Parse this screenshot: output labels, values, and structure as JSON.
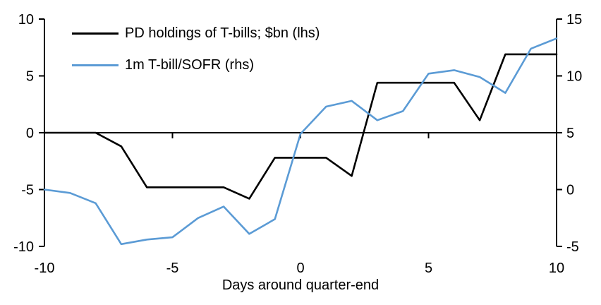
{
  "chart_data": {
    "type": "line",
    "title": "",
    "xlabel": "Days around quarter-end",
    "x": [
      -10,
      -9,
      -8,
      -7,
      -6,
      -5,
      -4,
      -3,
      -2,
      -1,
      0,
      1,
      2,
      3,
      4,
      5,
      6,
      7,
      8,
      9,
      10
    ],
    "series": [
      {
        "name": "PD holdings of T-bills; $bn (lhs)",
        "axis": "left",
        "color": "#000000",
        "values": [
          0,
          0,
          0,
          -1.2,
          -4.8,
          -4.8,
          -4.8,
          -4.8,
          -5.8,
          -2.2,
          -2.2,
          -2.2,
          -3.8,
          4.4,
          4.4,
          4.4,
          4.4,
          1.1,
          6.9,
          6.9,
          6.9
        ]
      },
      {
        "name": "1m T-bill/SOFR (rhs)",
        "axis": "right",
        "color": "#5B9BD5",
        "values": [
          0.0,
          -0.3,
          -1.2,
          -4.8,
          -4.4,
          -4.2,
          -2.5,
          -1.5,
          -3.9,
          -2.6,
          4.9,
          7.3,
          7.8,
          6.1,
          6.9,
          10.2,
          10.5,
          9.9,
          8.5,
          12.4,
          13.3
        ]
      }
    ],
    "left_axis": {
      "range": [
        -10,
        10
      ],
      "ticks": [
        10,
        5,
        0,
        -5,
        -10
      ]
    },
    "right_axis": {
      "range": [
        -5,
        15
      ],
      "ticks": [
        15,
        10,
        5,
        0,
        -5
      ]
    },
    "x_ticks": [
      -10,
      -5,
      0,
      5,
      10
    ],
    "grid": false,
    "legend_position": "top-left"
  }
}
